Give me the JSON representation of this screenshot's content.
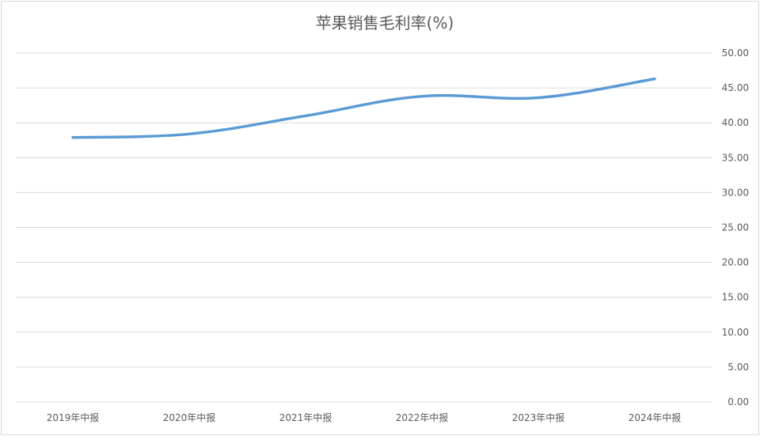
{
  "chart_data": {
    "type": "line",
    "title": "苹果销售毛利率(%)",
    "categories": [
      "2019年中报",
      "2020年中报",
      "2021年中报",
      "2022年中报",
      "2023年中报",
      "2024年中报"
    ],
    "series": [
      {
        "values": [
          37.9,
          38.4,
          41.0,
          43.8,
          43.6,
          46.3
        ],
        "color": "#5b9bd5"
      }
    ],
    "ylim": [
      0,
      50
    ],
    "ytick_labels": [
      "0.00",
      "5.00",
      "10.00",
      "15.00",
      "20.00",
      "25.00",
      "30.00",
      "35.00",
      "40.00",
      "45.00",
      "50.00"
    ],
    "yaxis_position": "right",
    "grid": true,
    "legend": "none"
  }
}
